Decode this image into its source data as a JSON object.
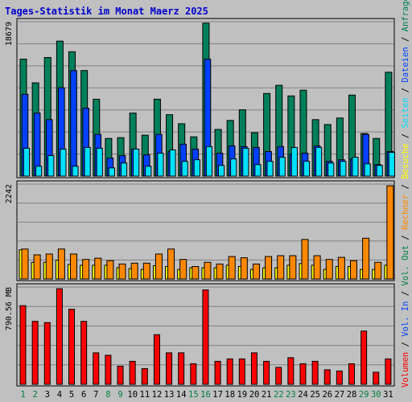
{
  "colors": {
    "background": "#ffffff",
    "frame": "#c0c0c0",
    "panel": "#c0c0c0",
    "grid": "#808080",
    "title": "#0000cc",
    "anfragen": "#00805a",
    "dateien": "#0040ff",
    "seiten": "#00e0ff",
    "besuche": "#ffff00",
    "rechner": "#ff8800",
    "volumen": "#ff0000",
    "weekday": "#008040",
    "weekend": "#000000"
  },
  "chart_data": {
    "type": "bar",
    "title": "Tages-Statistik im Monat Maerz 2025",
    "days": [
      "1",
      "2",
      "3",
      "4",
      "5",
      "6",
      "7",
      "8",
      "9",
      "10",
      "11",
      "12",
      "13",
      "14",
      "15",
      "16",
      "17",
      "18",
      "19",
      "20",
      "21",
      "22",
      "23",
      "24",
      "25",
      "26",
      "27",
      "28",
      "29",
      "30",
      "31"
    ],
    "weekend_days": [
      "1",
      "2",
      "8",
      "9",
      "15",
      "16",
      "22",
      "23",
      "29",
      "30"
    ],
    "panels": [
      {
        "id": "requests",
        "max_label": "18679",
        "max": 18679,
        "series": [
          {
            "name": "Anfragen",
            "values": [
              14300,
              11400,
              14500,
              16500,
              15200,
              12900,
              9400,
              4600,
              4700,
              7700,
              5000,
              9400,
              7500,
              6400,
              4800,
              18700,
              5700,
              6800,
              8100,
              5300,
              10100,
              11100,
              9800,
              10500,
              6900,
              6300,
              7100,
              9900,
              5200,
              4600,
              12700
            ]
          },
          {
            "name": "Dateien",
            "values": [
              10000,
              7700,
              6900,
              10800,
              12900,
              8300,
              5100,
              2200,
              2500,
              3300,
              2600,
              5100,
              3000,
              3900,
              3300,
              14300,
              2800,
              3700,
              3600,
              3500,
              3000,
              3600,
              2700,
              2800,
              3700,
              1800,
              2000,
              2100,
              5100,
              1400,
              3000
            ]
          },
          {
            "name": "Seiten",
            "values": [
              3400,
              1200,
              2500,
              3300,
              1200,
              3500,
              3400,
              1000,
              1600,
              3300,
              1200,
              2800,
              3200,
              1800,
              2000,
              3600,
              1300,
              2100,
              3400,
              1400,
              1800,
              2300,
              3500,
              1800,
              3500,
              1600,
              1800,
              2300,
              1500,
              1300,
              2900
            ]
          }
        ]
      },
      {
        "id": "visits",
        "max_label": "2242",
        "max": 2242,
        "series": [
          {
            "name": "Besuche",
            "values": [
              700,
              400,
              400,
              450,
              350,
              330,
              330,
              330,
              270,
              250,
              230,
              320,
              300,
              230,
              270,
              270,
              270,
              330,
              300,
              230,
              270,
              270,
              330,
              370,
              330,
              230,
              300,
              300,
              230,
              230,
              330
            ]
          },
          {
            "name": "Rechner",
            "values": [
              720,
              580,
              600,
              720,
              600,
              470,
              500,
              440,
              360,
              380,
              380,
              600,
              720,
              470,
              300,
              400,
              360,
              540,
              510,
              360,
              540,
              560,
              560,
              950,
              560,
              470,
              520,
              440,
              980,
              400,
              2240
            ]
          }
        ]
      },
      {
        "id": "volume",
        "max_label": "790.56 MB",
        "max": 790.56,
        "series": [
          {
            "name": "Volumen",
            "values": [
              650,
              520,
              510,
              790,
              620,
              520,
              260,
              240,
              150,
              190,
              130,
              410,
              260,
              260,
              170,
              780,
              190,
              210,
              210,
              260,
              190,
              140,
              220,
              170,
              190,
              120,
              110,
              170,
              440,
              100,
              210
            ]
          }
        ]
      }
    ],
    "legend_right_top": [
      {
        "label": "Anfragen",
        "color": "#00805a"
      },
      {
        "label": " / ",
        "color": "#000000"
      },
      {
        "label": "Dateien",
        "color": "#0040ff"
      },
      {
        "label": " / ",
        "color": "#000000"
      },
      {
        "label": "Seiten",
        "color": "#00e0ff"
      },
      {
        "label": " / ",
        "color": "#000000"
      },
      {
        "label": "Besuche",
        "color": "#ffff00"
      },
      {
        "label": " / ",
        "color": "#000000"
      },
      {
        "label": "Rechner",
        "color": "#ff8800"
      },
      {
        "label": " / ",
        "color": "#000000"
      },
      {
        "label": "Vol. Out",
        "color": "#008040"
      },
      {
        "label": " / ",
        "color": "#000000"
      },
      {
        "label": "Vol. In",
        "color": "#0040ff"
      },
      {
        "label": " / ",
        "color": "#000000"
      },
      {
        "label": "Volumen",
        "color": "#ff0000"
      }
    ],
    "grid": true
  }
}
